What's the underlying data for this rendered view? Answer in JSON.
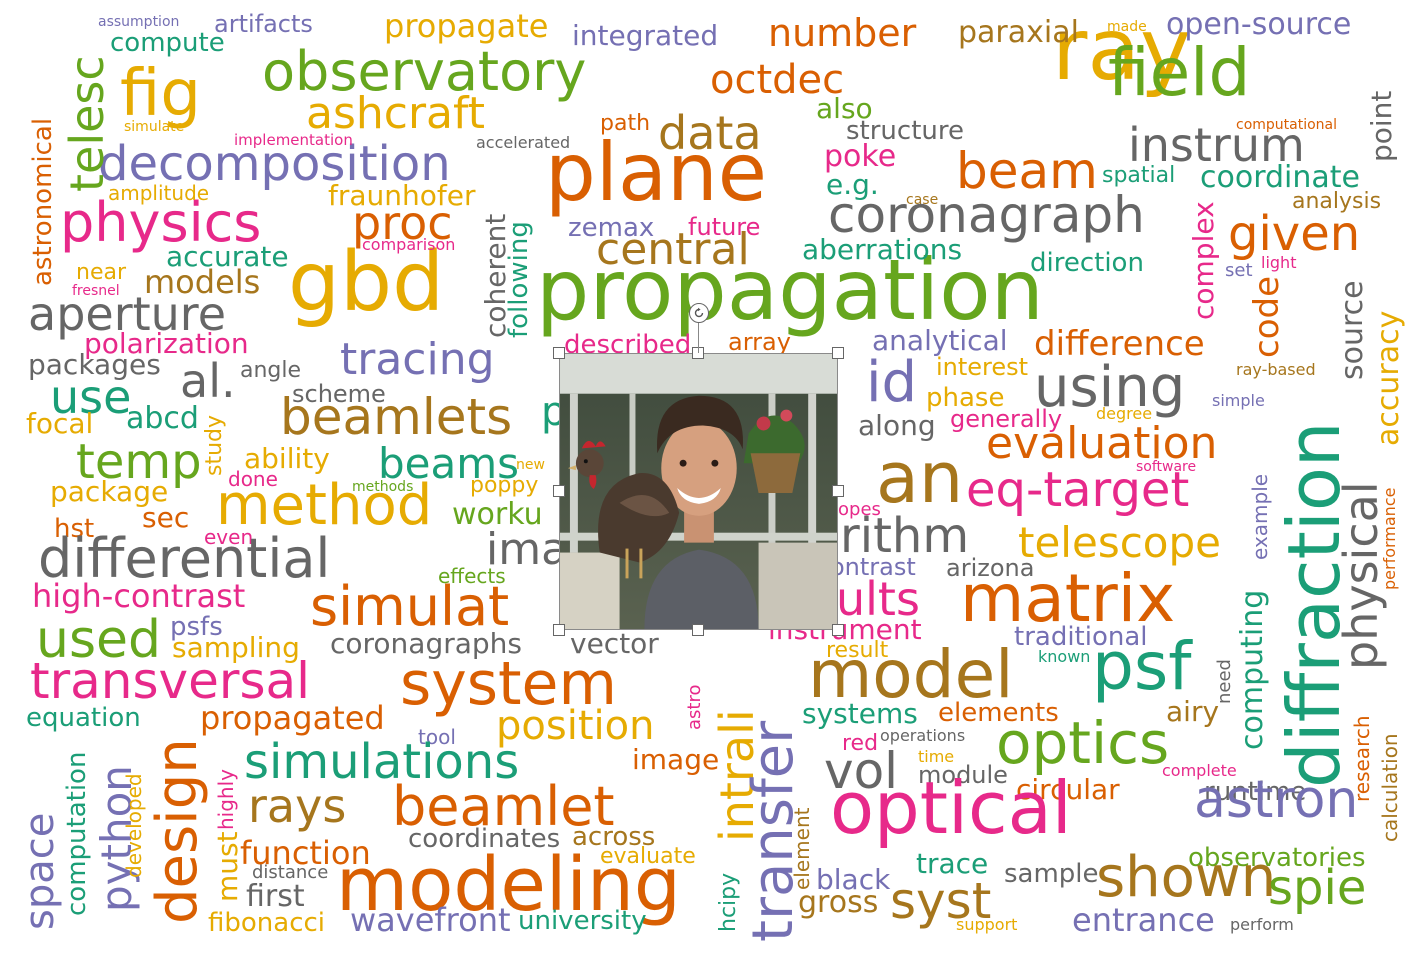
{
  "colors": {
    "g": "#66a61e",
    "o": "#d95f02",
    "y": "#e6ab02",
    "p": "#7570b3",
    "m": "#e7298a",
    "t": "#1b9e77",
    "b": "#a6761d",
    "k": "#666666"
  },
  "words": [
    [
      "ray",
      1052,
      7,
      86,
      "y",
      0
    ],
    [
      "field",
      1108,
      40,
      66,
      "g",
      0
    ],
    [
      "plane",
      545,
      133,
      80,
      "o",
      0
    ],
    [
      "propagation",
      536,
      248,
      84,
      "g",
      0
    ],
    [
      "gbd",
      288,
      242,
      82,
      "y",
      0
    ],
    [
      "observatory",
      262,
      45,
      54,
      "g",
      0
    ],
    [
      "decomposition",
      98,
      140,
      48,
      "p",
      0
    ],
    [
      "physics",
      60,
      196,
      54,
      "m",
      0
    ],
    [
      "fig",
      120,
      62,
      64,
      "y",
      0
    ],
    [
      "ashcraft",
      306,
      92,
      44,
      "y",
      0
    ],
    [
      "octdec",
      710,
      60,
      40,
      "o",
      0
    ],
    [
      "number",
      768,
      14,
      38,
      "o",
      0
    ],
    [
      "data",
      658,
      110,
      46,
      "b",
      0
    ],
    [
      "propagate",
      384,
      10,
      32,
      "y",
      0
    ],
    [
      "integrated",
      572,
      22,
      28,
      "p",
      0
    ],
    [
      "paraxial",
      958,
      18,
      30,
      "b",
      0
    ],
    [
      "open-source",
      1166,
      10,
      30,
      "p",
      0
    ],
    [
      "made",
      1107,
      20,
      14,
      "y",
      0
    ],
    [
      "artifacts",
      214,
      12,
      24,
      "p",
      0
    ],
    [
      "assumption",
      98,
      15,
      14,
      "p",
      0
    ],
    [
      "compute",
      110,
      30,
      26,
      "t",
      0
    ],
    [
      "simulate",
      124,
      120,
      14,
      "y",
      0
    ],
    [
      "implementation",
      234,
      133,
      15,
      "m",
      0
    ],
    [
      "accelerated",
      476,
      135,
      16,
      "k",
      0
    ],
    [
      "path",
      600,
      113,
      22,
      "o",
      0
    ],
    [
      "also",
      816,
      95,
      28,
      "g",
      0
    ],
    [
      "structure",
      846,
      118,
      26,
      "k",
      0
    ],
    [
      "computational",
      1236,
      118,
      14,
      "o",
      0
    ],
    [
      "instrum",
      1128,
      122,
      46,
      "k",
      0
    ],
    [
      "beam",
      956,
      146,
      50,
      "o",
      0
    ],
    [
      "poke",
      824,
      142,
      30,
      "m",
      0
    ],
    [
      "e.g.",
      826,
      171,
      28,
      "t",
      0
    ],
    [
      "spatial",
      1102,
      165,
      22,
      "t",
      0
    ],
    [
      "coordinate",
      1200,
      163,
      30,
      "t",
      0
    ],
    [
      "analysis",
      1292,
      191,
      22,
      "b",
      0
    ],
    [
      "case",
      906,
      193,
      14,
      "b",
      0
    ],
    [
      "coronagraph",
      828,
      190,
      50,
      "k",
      0
    ],
    [
      "given",
      1228,
      210,
      48,
      "o",
      0
    ],
    [
      "amplitude",
      108,
      183,
      20,
      "y",
      0
    ],
    [
      "fraunhofer",
      328,
      182,
      28,
      "y",
      0
    ],
    [
      "proc",
      352,
      200,
      46,
      "o",
      0
    ],
    [
      "zemax",
      568,
      215,
      26,
      "p",
      0
    ],
    [
      "future",
      688,
      215,
      24,
      "m",
      0
    ],
    [
      "central",
      596,
      228,
      44,
      "b",
      0
    ],
    [
      "aberrations",
      802,
      236,
      28,
      "t",
      0
    ],
    [
      "direction",
      1030,
      250,
      26,
      "t",
      0
    ],
    [
      "light",
      1261,
      255,
      16,
      "m",
      0
    ],
    [
      "set",
      1225,
      262,
      18,
      "p",
      0
    ],
    [
      "accurate",
      166,
      243,
      28,
      "t",
      0
    ],
    [
      "comparison",
      362,
      237,
      16,
      "m",
      0
    ],
    [
      "near",
      76,
      262,
      22,
      "y",
      0
    ],
    [
      "models",
      144,
      266,
      32,
      "b",
      0
    ],
    [
      "fresnel",
      72,
      284,
      14,
      "m",
      0
    ],
    [
      "aperture",
      28,
      291,
      46,
      "k",
      0
    ],
    [
      "polarization",
      84,
      330,
      28,
      "m",
      0
    ],
    [
      "described",
      564,
      332,
      26,
      "m",
      0
    ],
    [
      "array",
      728,
      330,
      24,
      "o",
      0
    ],
    [
      "analytical",
      872,
      327,
      28,
      "p",
      0
    ],
    [
      "difference",
      1034,
      327,
      34,
      "o",
      0
    ],
    [
      "interest",
      936,
      355,
      24,
      "y",
      0
    ],
    [
      "packages",
      28,
      351,
      28,
      "k",
      0
    ],
    [
      "tracing",
      340,
      338,
      44,
      "p",
      0
    ],
    [
      "id",
      866,
      355,
      56,
      "p",
      0
    ],
    [
      "ray-based",
      1236,
      362,
      16,
      "b",
      0
    ],
    [
      "using",
      1034,
      360,
      56,
      "k",
      0
    ],
    [
      "simple",
      1212,
      393,
      16,
      "p",
      0
    ],
    [
      "use",
      50,
      374,
      46,
      "t",
      0
    ],
    [
      "al.",
      180,
      358,
      46,
      "k",
      0
    ],
    [
      "angle",
      240,
      360,
      22,
      "k",
      0
    ],
    [
      "scheme",
      292,
      382,
      24,
      "k",
      0
    ],
    [
      "phase",
      926,
      385,
      26,
      "y",
      0
    ],
    [
      "generally",
      950,
      407,
      24,
      "m",
      0
    ],
    [
      "degree",
      1096,
      406,
      16,
      "y",
      0
    ],
    [
      "along",
      858,
      412,
      28,
      "k",
      0
    ],
    [
      "focal",
      26,
      410,
      28,
      "y",
      0
    ],
    [
      "abcd",
      126,
      404,
      30,
      "t",
      0
    ],
    [
      "beamlets",
      280,
      392,
      50,
      "b",
      0
    ],
    [
      "evaluation",
      986,
      422,
      44,
      "o",
      0
    ],
    [
      "temp",
      76,
      438,
      48,
      "g",
      0
    ],
    [
      "ability",
      244,
      445,
      28,
      "y",
      0
    ],
    [
      "beams",
      378,
      443,
      42,
      "t",
      0
    ],
    [
      "new",
      516,
      458,
      14,
      "y",
      0
    ],
    [
      "software",
      1136,
      460,
      14,
      "m",
      0
    ],
    [
      "an",
      876,
      443,
      70,
      "b",
      0
    ],
    [
      "package",
      50,
      478,
      28,
      "y",
      0
    ],
    [
      "done",
      228,
      469,
      20,
      "m",
      0
    ],
    [
      "methods",
      352,
      480,
      14,
      "g",
      0
    ],
    [
      "poppy",
      470,
      475,
      22,
      "y",
      0
    ],
    [
      "eq-target",
      966,
      466,
      48,
      "m",
      0
    ],
    [
      "hst",
      54,
      516,
      26,
      "o",
      0
    ],
    [
      "sec",
      142,
      504,
      28,
      "o",
      0
    ],
    [
      "method",
      216,
      478,
      56,
      "y",
      0
    ],
    [
      "worku",
      452,
      500,
      30,
      "g",
      0
    ],
    [
      "opes",
      838,
      501,
      18,
      "m",
      0
    ],
    [
      "rithm",
      840,
      512,
      48,
      "k",
      0
    ],
    [
      "telescope",
      1018,
      522,
      42,
      "y",
      0
    ],
    [
      "even",
      204,
      527,
      20,
      "m",
      0
    ],
    [
      "differential",
      38,
      532,
      54,
      "k",
      0
    ],
    [
      "ima",
      486,
      528,
      44,
      "k",
      0
    ],
    [
      "effects",
      438,
      566,
      20,
      "g",
      0
    ],
    [
      "ontrast",
      830,
      555,
      24,
      "p",
      0
    ],
    [
      "arizona",
      946,
      556,
      24,
      "k",
      0
    ],
    [
      "high-contrast",
      32,
      580,
      32,
      "m",
      0
    ],
    [
      "simulat",
      310,
      580,
      54,
      "o",
      0
    ],
    [
      "ults",
      836,
      576,
      46,
      "m",
      0
    ],
    [
      "matrix",
      960,
      566,
      66,
      "o",
      0
    ],
    [
      "psfs",
      170,
      614,
      26,
      "p",
      0
    ],
    [
      "used",
      36,
      614,
      52,
      "g",
      0
    ],
    [
      "sampling",
      172,
      634,
      28,
      "y",
      0
    ],
    [
      "coronagraphs",
      330,
      630,
      28,
      "k",
      0
    ],
    [
      "vector",
      570,
      630,
      28,
      "k",
      0
    ],
    [
      "instrument",
      768,
      616,
      28,
      "m",
      0
    ],
    [
      "traditional",
      1014,
      624,
      26,
      "p",
      0
    ],
    [
      "result",
      826,
      640,
      22,
      "y",
      0
    ],
    [
      "known",
      1038,
      649,
      16,
      "t",
      0
    ],
    [
      "transversal",
      30,
      656,
      50,
      "m",
      0
    ],
    [
      "system",
      400,
      654,
      60,
      "o",
      0
    ],
    [
      "model",
      808,
      642,
      66,
      "b",
      0
    ],
    [
      "psf",
      1092,
      634,
      66,
      "t",
      0
    ],
    [
      "equation",
      26,
      705,
      26,
      "t",
      0
    ],
    [
      "propagated",
      200,
      702,
      32,
      "o",
      0
    ],
    [
      "position",
      496,
      706,
      40,
      "y",
      0
    ],
    [
      "airy",
      1166,
      698,
      28,
      "b",
      0
    ],
    [
      "systems",
      802,
      700,
      28,
      "t",
      0
    ],
    [
      "elements",
      938,
      700,
      26,
      "o",
      0
    ],
    [
      "optics",
      996,
      714,
      58,
      "g",
      0
    ],
    [
      "operations",
      880,
      728,
      16,
      "k",
      0
    ],
    [
      "tool",
      418,
      727,
      20,
      "p",
      0
    ],
    [
      "red",
      842,
      733,
      22,
      "m",
      0
    ],
    [
      "simulations",
      244,
      738,
      48,
      "t",
      0
    ],
    [
      "time",
      918,
      749,
      16,
      "y",
      0
    ],
    [
      "image",
      632,
      746,
      28,
      "o",
      0
    ],
    [
      "vol",
      824,
      746,
      50,
      "k",
      0
    ],
    [
      "module",
      918,
      763,
      24,
      "k",
      0
    ],
    [
      "complete",
      1162,
      763,
      16,
      "m",
      0
    ],
    [
      "circular",
      1016,
      776,
      28,
      "o",
      0
    ],
    [
      "runtime",
      1204,
      779,
      26,
      "k",
      0
    ],
    [
      "rays",
      248,
      783,
      46,
      "b",
      0
    ],
    [
      "beamlet",
      392,
      780,
      54,
      "o",
      0
    ],
    [
      "optical",
      830,
      772,
      72,
      "m",
      0
    ],
    [
      "astron",
      1194,
      774,
      52,
      "p",
      0
    ],
    [
      "coordinates",
      408,
      826,
      26,
      "k",
      0
    ],
    [
      "across",
      572,
      824,
      26,
      "b",
      0
    ],
    [
      "function",
      240,
      837,
      32,
      "o",
      0
    ],
    [
      "evaluate",
      600,
      846,
      22,
      "y",
      0
    ],
    [
      "trace",
      916,
      850,
      28,
      "t",
      0
    ],
    [
      "observatories",
      1188,
      845,
      26,
      "g",
      0
    ],
    [
      "distance",
      252,
      864,
      18,
      "k",
      0
    ],
    [
      "sample",
      1004,
      861,
      26,
      "k",
      0
    ],
    [
      "black",
      816,
      866,
      28,
      "p",
      0
    ],
    [
      "modeling",
      336,
      848,
      74,
      "o",
      0
    ],
    [
      "shown",
      1096,
      850,
      56,
      "b",
      0
    ],
    [
      "spie",
      1268,
      864,
      48,
      "g",
      0
    ],
    [
      "first",
      246,
      882,
      30,
      "k",
      0
    ],
    [
      "gross",
      798,
      888,
      30,
      "b",
      0
    ],
    [
      "syst",
      890,
      876,
      50,
      "b",
      0
    ],
    [
      "fibonacci",
      208,
      910,
      26,
      "y",
      0
    ],
    [
      "wavefront",
      350,
      904,
      32,
      "p",
      0
    ],
    [
      "university",
      518,
      908,
      26,
      "t",
      0
    ],
    [
      "entrance",
      1072,
      904,
      32,
      "p",
      0
    ],
    [
      "support",
      956,
      917,
      16,
      "y",
      0
    ],
    [
      "perform",
      1230,
      917,
      16,
      "k",
      0
    ],
    [
      "telesc",
      64,
      192,
      46,
      "g",
      1
    ],
    [
      "astronomical",
      30,
      286,
      26,
      "o",
      1
    ],
    [
      "coherent",
      482,
      338,
      28,
      "k",
      1
    ],
    [
      "following",
      506,
      338,
      26,
      "t",
      1
    ],
    [
      "complex",
      1190,
      320,
      28,
      "m",
      1
    ],
    [
      "code",
      1250,
      358,
      34,
      "o",
      1
    ],
    [
      "diffraction",
      1278,
      788,
      72,
      "t",
      1
    ],
    [
      "point",
      1368,
      162,
      28,
      "k",
      1
    ],
    [
      "source",
      1338,
      380,
      30,
      "k",
      1
    ],
    [
      "accuracy",
      1374,
      446,
      30,
      "y",
      1
    ],
    [
      "physical",
      1338,
      670,
      46,
      "k",
      1
    ],
    [
      "performance",
      1382,
      590,
      16,
      "o",
      1
    ],
    [
      "example",
      1250,
      560,
      20,
      "p",
      1
    ],
    [
      "computing",
      1238,
      750,
      30,
      "t",
      1
    ],
    [
      "need",
      1216,
      704,
      18,
      "k",
      1
    ],
    [
      "research",
      1352,
      802,
      20,
      "o",
      1
    ],
    [
      "calculation",
      1380,
      842,
      20,
      "b",
      1
    ],
    [
      "study",
      204,
      476,
      22,
      "y",
      1
    ],
    [
      "design",
      150,
      924,
      56,
      "o",
      1
    ],
    [
      "python",
      96,
      912,
      42,
      "p",
      1
    ],
    [
      "space",
      20,
      930,
      40,
      "p",
      1
    ],
    [
      "computation",
      64,
      916,
      26,
      "t",
      1
    ],
    [
      "developed",
      124,
      878,
      20,
      "y",
      1
    ],
    [
      "highly",
      216,
      830,
      20,
      "m",
      1
    ],
    [
      "must",
      214,
      902,
      28,
      "y",
      1
    ],
    [
      "intrali",
      714,
      842,
      46,
      "y",
      1
    ],
    [
      "transfer",
      746,
      942,
      56,
      "p",
      1
    ],
    [
      "astro",
      686,
      730,
      18,
      "m",
      1
    ],
    [
      "hcipy",
      718,
      932,
      22,
      "t",
      1
    ],
    [
      "element",
      792,
      890,
      20,
      "b",
      1
    ],
    [
      "p",
      541,
      392,
      40,
      "t",
      0
    ]
  ]
}
